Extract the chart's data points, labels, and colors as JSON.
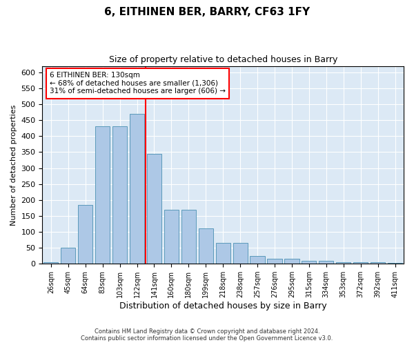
{
  "title": "6, EITHINEN BER, BARRY, CF63 1FY",
  "subtitle": "Size of property relative to detached houses in Barry",
  "xlabel": "Distribution of detached houses by size in Barry",
  "ylabel": "Number of detached properties",
  "categories": [
    "26sqm",
    "45sqm",
    "64sqm",
    "83sqm",
    "103sqm",
    "122sqm",
    "141sqm",
    "160sqm",
    "180sqm",
    "199sqm",
    "218sqm",
    "238sqm",
    "257sqm",
    "276sqm",
    "295sqm",
    "315sqm",
    "334sqm",
    "353sqm",
    "372sqm",
    "392sqm",
    "411sqm"
  ],
  "values": [
    5,
    50,
    185,
    430,
    430,
    470,
    345,
    170,
    170,
    110,
    65,
    65,
    25,
    15,
    15,
    10,
    10,
    5,
    5,
    5,
    3
  ],
  "bar_color": "#adc8e6",
  "bar_edge_color": "#5a9aba",
  "vline_x": 5.5,
  "vline_color": "red",
  "annotation_title": "6 EITHINEN BER: 130sqm",
  "annotation_line1": "← 68% of detached houses are smaller (1,306)",
  "annotation_line2": "31% of semi-detached houses are larger (606) →",
  "annotation_box_color": "white",
  "annotation_box_edge": "red",
  "ylim": [
    0,
    620
  ],
  "yticks": [
    0,
    50,
    100,
    150,
    200,
    250,
    300,
    350,
    400,
    450,
    500,
    550,
    600
  ],
  "background_color": "#dce9f5",
  "footer": "Contains HM Land Registry data © Crown copyright and database right 2024.\nContains public sector information licensed under the Open Government Licence v3.0.",
  "title_fontsize": 11,
  "subtitle_fontsize": 9,
  "xlabel_fontsize": 9,
  "ylabel_fontsize": 8
}
